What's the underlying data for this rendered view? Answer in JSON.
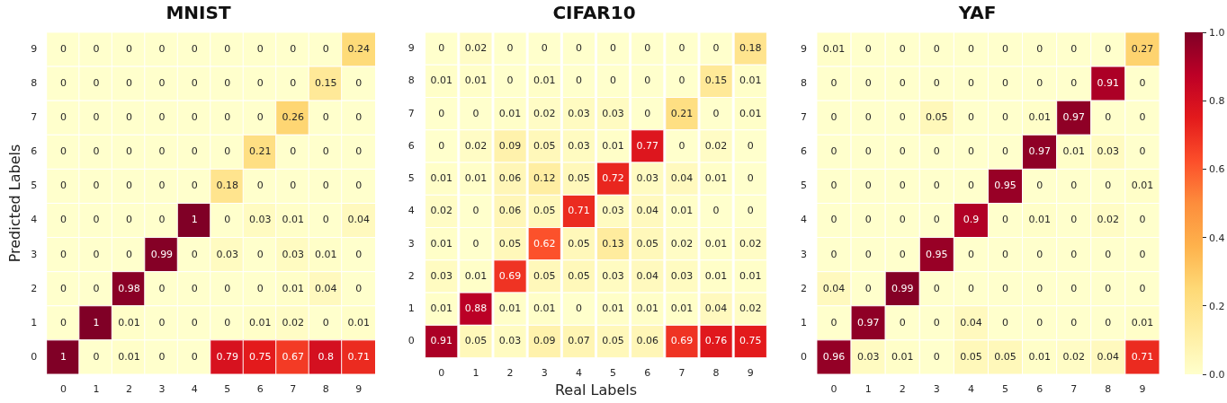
{
  "chart_data": [
    {
      "type": "heatmap",
      "title": "MNIST",
      "ylabel": "Predicted Labels",
      "data_labels": true,
      "categories": [
        "0",
        "1",
        "2",
        "3",
        "4",
        "5",
        "6",
        "7",
        "8",
        "9"
      ],
      "y_categories": [
        "9",
        "8",
        "7",
        "6",
        "5",
        "4",
        "3",
        "2",
        "1",
        "0"
      ],
      "cells": [
        [
          0,
          0,
          0,
          0,
          0,
          0,
          0,
          0,
          0,
          0.24
        ],
        [
          0,
          0,
          0,
          0,
          0,
          0,
          0,
          0,
          0.15,
          0
        ],
        [
          0,
          0,
          0,
          0,
          0,
          0,
          0,
          0.26,
          0,
          0
        ],
        [
          0,
          0,
          0,
          0,
          0,
          0,
          0.21,
          0,
          0,
          0
        ],
        [
          0,
          0,
          0,
          0,
          0,
          0.18,
          0,
          0,
          0,
          0
        ],
        [
          0,
          0,
          0,
          0,
          1,
          0,
          0.03,
          0.01,
          0,
          0.04
        ],
        [
          0,
          0,
          0,
          0.99,
          0,
          0.03,
          0,
          0.03,
          0.01,
          0
        ],
        [
          0,
          0,
          0.98,
          0,
          0,
          0,
          0,
          0.01,
          0.04,
          0
        ],
        [
          0,
          1,
          0.01,
          0,
          0,
          0,
          0.01,
          0.02,
          0,
          0.01
        ],
        [
          1,
          0,
          0.01,
          0,
          0,
          0.79,
          0.75,
          0.67,
          0.8,
          0.71
        ]
      ]
    },
    {
      "type": "heatmap",
      "title": "CIFAR10",
      "xlabel": "Real Labels",
      "data_labels": true,
      "categories": [
        "0",
        "1",
        "2",
        "3",
        "4",
        "5",
        "6",
        "7",
        "8",
        "9"
      ],
      "y_categories": [
        "9",
        "8",
        "7",
        "6",
        "5",
        "4",
        "3",
        "2",
        "1",
        "0"
      ],
      "cells": [
        [
          0,
          0.02,
          0,
          0,
          0,
          0,
          0,
          0,
          0,
          0.18
        ],
        [
          0.01,
          0.01,
          0,
          0.01,
          0,
          0,
          0,
          0,
          0.15,
          0.01
        ],
        [
          0,
          0,
          0.01,
          0.02,
          0.03,
          0.03,
          0,
          0.21,
          0,
          0.01
        ],
        [
          0,
          0.02,
          0.09,
          0.05,
          0.03,
          0.01,
          0.77,
          0,
          0.02,
          0
        ],
        [
          0.01,
          0.01,
          0.06,
          0.12,
          0.05,
          0.72,
          0.03,
          0.04,
          0.01,
          0
        ],
        [
          0.02,
          0,
          0.06,
          0.05,
          0.71,
          0.03,
          0.04,
          0.01,
          0,
          0
        ],
        [
          0.01,
          0,
          0.05,
          0.62,
          0.05,
          0.13,
          0.05,
          0.02,
          0.01,
          0.02
        ],
        [
          0.03,
          0.01,
          0.69,
          0.05,
          0.05,
          0.03,
          0.04,
          0.03,
          0.01,
          0.01
        ],
        [
          0.01,
          0.88,
          0.01,
          0.01,
          0,
          0.01,
          0.01,
          0.01,
          0.04,
          0.02
        ],
        [
          0.91,
          0.05,
          0.03,
          0.09,
          0.07,
          0.05,
          0.06,
          0.69,
          0.76,
          0.75
        ]
      ]
    },
    {
      "type": "heatmap",
      "title": "YAF",
      "data_labels": true,
      "categories": [
        "0",
        "1",
        "2",
        "3",
        "4",
        "5",
        "6",
        "7",
        "8",
        "9"
      ],
      "y_categories": [
        "9",
        "8",
        "7",
        "6",
        "5",
        "4",
        "3",
        "2",
        "1",
        "0"
      ],
      "clim": [
        0,
        1
      ],
      "cticks": [
        {
          "value": 0,
          "label": "0.0"
        },
        {
          "value": 0.2,
          "label": "0.2"
        },
        {
          "value": 0.4,
          "label": "0.4"
        },
        {
          "value": 0.6,
          "label": "0.6"
        },
        {
          "value": 0.8,
          "label": "0.8"
        },
        {
          "value": 1,
          "label": "1.0"
        }
      ],
      "cells": [
        [
          0.01,
          0,
          0,
          0,
          0,
          0,
          0,
          0,
          0,
          0.27
        ],
        [
          0,
          0,
          0,
          0,
          0,
          0,
          0,
          0,
          0.91,
          0
        ],
        [
          0,
          0,
          0,
          0.05,
          0,
          0,
          0.01,
          0.97,
          0,
          0
        ],
        [
          0,
          0,
          0,
          0,
          0,
          0,
          0.97,
          0.01,
          0.03,
          0
        ],
        [
          0,
          0,
          0,
          0,
          0,
          0.95,
          0,
          0,
          0,
          0.01
        ],
        [
          0,
          0,
          0,
          0,
          0.9,
          0,
          0.01,
          0,
          0.02,
          0
        ],
        [
          0,
          0,
          0,
          0.95,
          0,
          0,
          0,
          0,
          0,
          0
        ],
        [
          0.04,
          0,
          0.99,
          0,
          0,
          0,
          0,
          0,
          0,
          0
        ],
        [
          0,
          0.97,
          0,
          0,
          0.04,
          0,
          0,
          0,
          0,
          0.01
        ],
        [
          0.96,
          0.03,
          0.01,
          0,
          0.05,
          0.05,
          0.01,
          0.02,
          0.04,
          0.71
        ]
      ]
    }
  ]
}
